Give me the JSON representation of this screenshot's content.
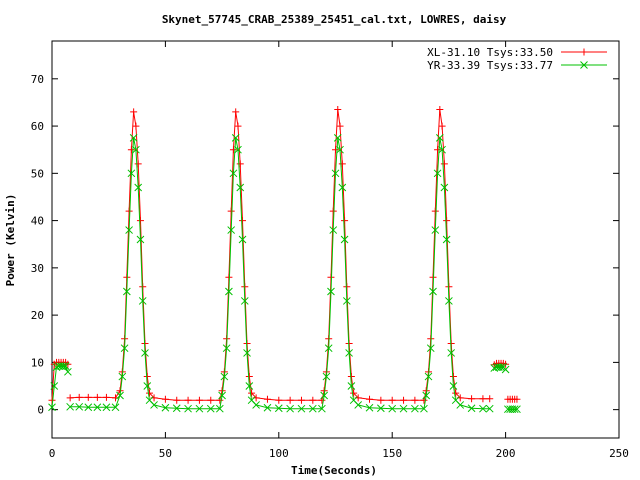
{
  "chart_data": {
    "type": "line",
    "title": "Skynet_57745_CRAB_25389_25451_cal.txt, LOWRES, daisy",
    "xlabel": "Time(Seconds)",
    "ylabel": "Power (Kelvin)",
    "xlim": [
      0,
      250
    ],
    "ylim": [
      -6,
      78
    ],
    "xticks": [
      0,
      50,
      100,
      150,
      200,
      250
    ],
    "yticks": [
      0,
      10,
      20,
      30,
      40,
      50,
      60,
      70
    ],
    "grid": false,
    "legend_position": "top-right",
    "series": [
      {
        "name": "XL-31.10 Tsys:33.50",
        "color": "#ff0000",
        "marker": "plus",
        "segments": [
          [
            [
              0,
              2
            ],
            [
              1,
              9.6
            ],
            [
              2,
              10
            ],
            [
              3,
              10
            ],
            [
              4,
              10
            ],
            [
              5,
              10
            ],
            [
              6,
              10
            ],
            [
              7,
              9.6
            ]
          ],
          [
            [
              8,
              2.5
            ],
            [
              12,
              2.6
            ],
            [
              16,
              2.6
            ],
            [
              20,
              2.6
            ],
            [
              24,
              2.6
            ],
            [
              28,
              2.5
            ],
            [
              30,
              4
            ],
            [
              31,
              8
            ],
            [
              32,
              15
            ],
            [
              33,
              28
            ],
            [
              34,
              42
            ],
            [
              35,
              55
            ],
            [
              36,
              63
            ],
            [
              37,
              60
            ],
            [
              38,
              52
            ],
            [
              39,
              40
            ],
            [
              40,
              26
            ],
            [
              41,
              14
            ],
            [
              42,
              7
            ],
            [
              43,
              3.5
            ],
            [
              45,
              2.5
            ],
            [
              50,
              2.2
            ],
            [
              55,
              2.0
            ],
            [
              60,
              2.0
            ],
            [
              65,
              2.0
            ],
            [
              70,
              2.0
            ],
            [
              74,
              2.0
            ],
            [
              75,
              4
            ],
            [
              76,
              8
            ],
            [
              77,
              15
            ],
            [
              78,
              28
            ],
            [
              79,
              42
            ],
            [
              80,
              55
            ],
            [
              81,
              63
            ],
            [
              82,
              60
            ],
            [
              83,
              52
            ],
            [
              84,
              40
            ],
            [
              85,
              26
            ],
            [
              86,
              14
            ],
            [
              87,
              7
            ],
            [
              88,
              3.5
            ],
            [
              90,
              2.5
            ],
            [
              95,
              2.2
            ],
            [
              100,
              2.0
            ],
            [
              105,
              2.0
            ],
            [
              110,
              2.0
            ],
            [
              115,
              2.0
            ],
            [
              119,
              2.0
            ],
            [
              120,
              4
            ],
            [
              121,
              8
            ],
            [
              122,
              15
            ],
            [
              123,
              28
            ],
            [
              124,
              42
            ],
            [
              125,
              55
            ],
            [
              126,
              63.5
            ],
            [
              127,
              60
            ],
            [
              128,
              52
            ],
            [
              129,
              40
            ],
            [
              130,
              26
            ],
            [
              131,
              14
            ],
            [
              132,
              7
            ],
            [
              133,
              3.5
            ],
            [
              135,
              2.5
            ],
            [
              140,
              2.2
            ],
            [
              145,
              2.0
            ],
            [
              150,
              2.0
            ],
            [
              155,
              2.0
            ],
            [
              160,
              2.0
            ],
            [
              164,
              2.0
            ],
            [
              165,
              4
            ],
            [
              166,
              8
            ],
            [
              167,
              15
            ],
            [
              168,
              28
            ],
            [
              169,
              42
            ],
            [
              170,
              55
            ],
            [
              171,
              63.5
            ],
            [
              172,
              60
            ],
            [
              173,
              52
            ],
            [
              174,
              40
            ],
            [
              175,
              26
            ],
            [
              176,
              14
            ],
            [
              177,
              7
            ],
            [
              178,
              3.5
            ],
            [
              180,
              2.5
            ],
            [
              185,
              2.3
            ],
            [
              190,
              2.3
            ],
            [
              193,
              2.3
            ]
          ],
          [
            [
              195,
              9.5
            ],
            [
              196,
              9.8
            ],
            [
              197,
              9.8
            ],
            [
              198,
              9.8
            ],
            [
              199,
              9.8
            ],
            [
              200,
              9.6
            ]
          ],
          [
            [
              201,
              2.2
            ],
            [
              202,
              2.2
            ],
            [
              203,
              2.2
            ],
            [
              204,
              2.2
            ],
            [
              205,
              2.2
            ]
          ]
        ]
      },
      {
        "name": "YR-33.39 Tsys:33.77",
        "color": "#00c000",
        "marker": "cross",
        "segments": [
          [
            [
              0,
              0.5
            ],
            [
              1,
              5
            ],
            [
              2,
              9
            ],
            [
              3,
              9.2
            ],
            [
              4,
              9.2
            ],
            [
              5,
              9.2
            ],
            [
              6,
              9.2
            ],
            [
              7,
              8
            ]
          ],
          [
            [
              8,
              0.6
            ],
            [
              12,
              0.6
            ],
            [
              16,
              0.5
            ],
            [
              20,
              0.5
            ],
            [
              24,
              0.5
            ],
            [
              28,
              0.5
            ],
            [
              30,
              3
            ],
            [
              31,
              7
            ],
            [
              32,
              13
            ],
            [
              33,
              25
            ],
            [
              34,
              38
            ],
            [
              35,
              50
            ],
            [
              36,
              57.5
            ],
            [
              37,
              55
            ],
            [
              38,
              47
            ],
            [
              39,
              36
            ],
            [
              40,
              23
            ],
            [
              41,
              12
            ],
            [
              42,
              5
            ],
            [
              43,
              2
            ],
            [
              45,
              1
            ],
            [
              50,
              0.4
            ],
            [
              55,
              0.3
            ],
            [
              60,
              0.2
            ],
            [
              65,
              0.2
            ],
            [
              70,
              0.2
            ],
            [
              74,
              0.2
            ],
            [
              75,
              3
            ],
            [
              76,
              7
            ],
            [
              77,
              13
            ],
            [
              78,
              25
            ],
            [
              79,
              38
            ],
            [
              80,
              50
            ],
            [
              81,
              57.5
            ],
            [
              82,
              55
            ],
            [
              83,
              47
            ],
            [
              84,
              36
            ],
            [
              85,
              23
            ],
            [
              86,
              12
            ],
            [
              87,
              5
            ],
            [
              88,
              2
            ],
            [
              90,
              1
            ],
            [
              95,
              0.4
            ],
            [
              100,
              0.3
            ],
            [
              105,
              0.2
            ],
            [
              110,
              0.2
            ],
            [
              115,
              0.2
            ],
            [
              119,
              0.2
            ],
            [
              120,
              3
            ],
            [
              121,
              7
            ],
            [
              122,
              13
            ],
            [
              123,
              25
            ],
            [
              124,
              38
            ],
            [
              125,
              50
            ],
            [
              126,
              57.5
            ],
            [
              127,
              55
            ],
            [
              128,
              47
            ],
            [
              129,
              36
            ],
            [
              130,
              23
            ],
            [
              131,
              12
            ],
            [
              132,
              5
            ],
            [
              133,
              2
            ],
            [
              135,
              1
            ],
            [
              140,
              0.4
            ],
            [
              145,
              0.3
            ],
            [
              150,
              0.2
            ],
            [
              155,
              0.2
            ],
            [
              160,
              0.2
            ],
            [
              164,
              0.2
            ],
            [
              165,
              3
            ],
            [
              166,
              7
            ],
            [
              167,
              13
            ],
            [
              168,
              25
            ],
            [
              169,
              38
            ],
            [
              170,
              50
            ],
            [
              171,
              57.5
            ],
            [
              172,
              55
            ],
            [
              173,
              47
            ],
            [
              174,
              36
            ],
            [
              175,
              23
            ],
            [
              176,
              12
            ],
            [
              177,
              5
            ],
            [
              178,
              2
            ],
            [
              180,
              1
            ],
            [
              185,
              0.3
            ],
            [
              190,
              0.2
            ],
            [
              193,
              0.2
            ]
          ],
          [
            [
              195,
              8.8
            ],
            [
              196,
              9.0
            ],
            [
              197,
              9.0
            ],
            [
              198,
              9.0
            ],
            [
              199,
              9.0
            ],
            [
              200,
              8.5
            ]
          ],
          [
            [
              201,
              0.1
            ],
            [
              202,
              0.1
            ],
            [
              203,
              0.1
            ],
            [
              204,
              0.1
            ],
            [
              205,
              0.1
            ]
          ]
        ]
      }
    ]
  }
}
